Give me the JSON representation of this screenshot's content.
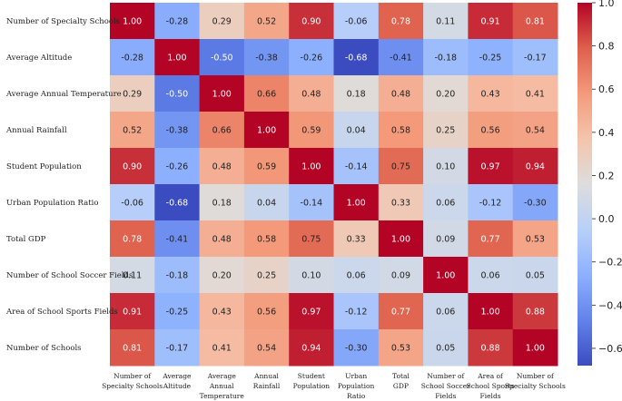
{
  "chart_data": {
    "type": "heatmap",
    "title": "",
    "row_labels": [
      "Number of Specialty Schools",
      "Average Altitude",
      "Average Annual Temperature",
      "Annual Rainfall",
      "Student Population",
      "Urban Population Ratio",
      "Total GDP",
      "Number of School Soccer Fields",
      "Area of School Sports Fields",
      "Number of Schools"
    ],
    "col_labels": [
      "Number of Specialty Schools",
      "Average Altitude",
      "Average Annual Temperature",
      "Annual Rainfall",
      "Student Population",
      "Urban Population Ratio",
      "Total GDP",
      "Number of School Soccer Fields",
      "Area of School Sports Fields",
      "Number of Specialty Schools"
    ],
    "col_label_lines": [
      [
        "Number of",
        "Specialty Schools"
      ],
      [
        "Average",
        "Altitude"
      ],
      [
        "Average",
        "Annual",
        "Temperature"
      ],
      [
        "Annual",
        "Rainfall"
      ],
      [
        "Student",
        "Population"
      ],
      [
        "Urban",
        "Population",
        "Ratio"
      ],
      [
        "Total",
        "GDP"
      ],
      [
        "Number of",
        "School Soccer",
        "Fields"
      ],
      [
        "Area of",
        "School Sports",
        "Fields"
      ],
      [
        "Number of",
        "Specialty Schools"
      ]
    ],
    "values": [
      [
        1.0,
        -0.28,
        0.29,
        0.52,
        0.9,
        -0.06,
        0.78,
        0.11,
        0.91,
        0.81
      ],
      [
        -0.28,
        1.0,
        -0.5,
        -0.38,
        -0.26,
        -0.68,
        -0.41,
        -0.18,
        -0.25,
        -0.17
      ],
      [
        0.29,
        -0.5,
        1.0,
        0.66,
        0.48,
        0.18,
        0.48,
        0.2,
        0.43,
        0.41
      ],
      [
        0.52,
        -0.38,
        0.66,
        1.0,
        0.59,
        0.04,
        0.58,
        0.25,
        0.56,
        0.54
      ],
      [
        0.9,
        -0.26,
        0.48,
        0.59,
        1.0,
        -0.14,
        0.75,
        0.1,
        0.97,
        0.94
      ],
      [
        -0.06,
        -0.68,
        0.18,
        0.04,
        -0.14,
        1.0,
        0.33,
        0.06,
        -0.12,
        -0.3
      ],
      [
        0.78,
        -0.41,
        0.48,
        0.58,
        0.75,
        0.33,
        1.0,
        0.09,
        0.77,
        0.53
      ],
      [
        0.11,
        -0.18,
        0.2,
        0.25,
        0.1,
        0.06,
        0.09,
        1.0,
        0.06,
        0.05
      ],
      [
        0.91,
        -0.25,
        0.43,
        0.56,
        0.97,
        -0.12,
        0.77,
        0.06,
        1.0,
        0.88
      ],
      [
        0.81,
        -0.17,
        0.41,
        0.54,
        0.94,
        -0.3,
        0.53,
        0.05,
        0.88,
        1.0
      ]
    ],
    "value_format": "0.00",
    "colormap": "coolwarm",
    "vmin": -0.68,
    "vmax": 1.0,
    "colorbar_ticks": [
      1.0,
      0.8,
      0.6,
      0.4,
      0.2,
      0.0,
      -0.2,
      -0.4,
      -0.6
    ],
    "colorbar_tick_labels": [
      "1.0",
      "0.8",
      "0.6",
      "0.4",
      "0.2",
      "0.0",
      "−0.2",
      "−0.4",
      "−0.6"
    ]
  }
}
